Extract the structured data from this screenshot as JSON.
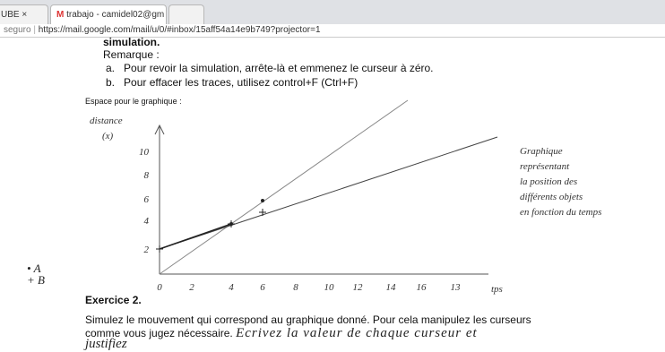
{
  "browser": {
    "tabs": [
      "UBE",
      "trabajo - camidel02@gm"
    ],
    "security": "seguro",
    "url": "https://mail.google.com/mail/u/0/#inbox/15aff54a14e9b749?projector=1"
  },
  "document": {
    "lines": [
      "simulation.",
      "Remarque :"
    ],
    "list": [
      {
        "marker": "a.",
        "text": "Pour revoir la simulation, arrête-là et emmenez le curseur à zéro."
      },
      {
        "marker": "b.",
        "text": "Pour effacer les traces, utilisez control+F (Ctrl+F)"
      }
    ],
    "graph_caption": "Espace pour le graphique :",
    "graph": {
      "y_label": [
        "distance",
        "(x)"
      ],
      "x_label": "tps",
      "x_ticks": [
        "0",
        "2",
        "4",
        "6",
        "8",
        "10",
        "12",
        "14",
        "16",
        "13"
      ],
      "y_ticks": [
        "2",
        "4",
        "6",
        "8",
        "10"
      ],
      "note": [
        "Graphique",
        "représentant",
        "la position des",
        "différents objets",
        "en fonction du temps"
      ],
      "legend": [
        "• A",
        "+ B"
      ]
    },
    "exercise_title": "Exercice 2.",
    "exercise_text": [
      "Simulez le mouvement qui correspond au graphique donné.  Pour cela manipulez les curseurs",
      "comme vous jugez nécessaire."
    ],
    "handwritten_answer": [
      "Ecrivez la valeur de chaque curseur et",
      "justifiez"
    ]
  }
}
